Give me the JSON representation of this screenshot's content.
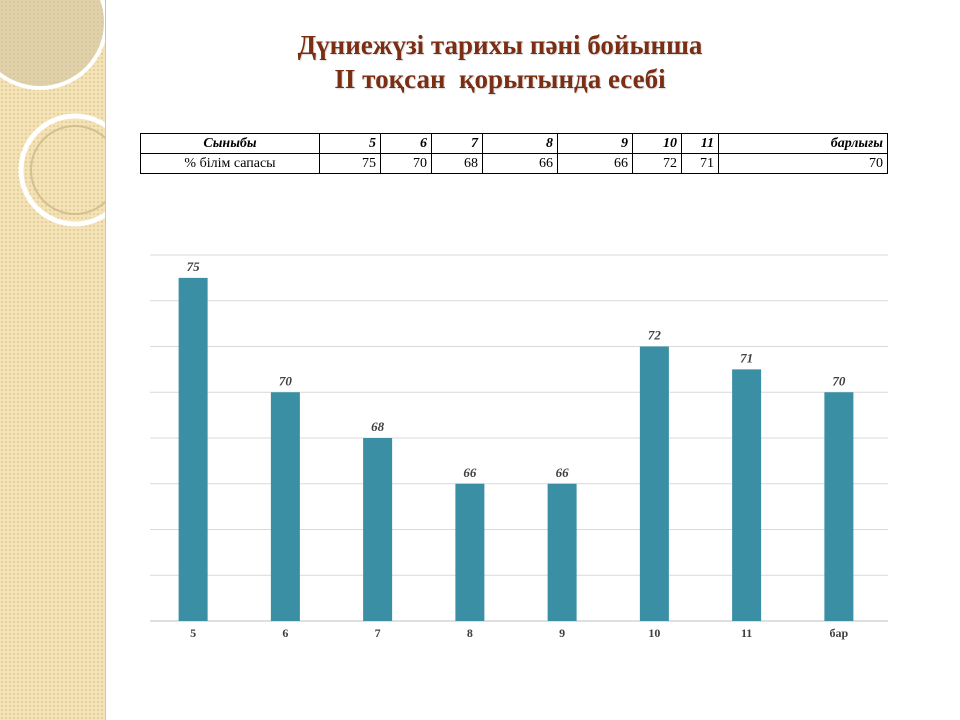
{
  "title": {
    "line1": "Дүниежүзі тарихы пәні бойынша",
    "line2": "ІІ тоқсан  қорытында есебі"
  },
  "table": {
    "header": [
      "Сыныбы",
      "5",
      "6",
      "7",
      "8",
      "9",
      "10",
      "11",
      "барлығы"
    ],
    "row": [
      "% білім сапасы",
      "75",
      "70",
      "68",
      "66",
      "66",
      "72",
      "71",
      "70"
    ]
  },
  "colors": {
    "bar": "#3a8fa5",
    "title": "#7a2e14",
    "side_panel": "#f4e3b7"
  },
  "chart_data": {
    "type": "bar",
    "categories": [
      "5",
      "6",
      "7",
      "8",
      "9",
      "10",
      "11",
      "бар"
    ],
    "values": [
      75,
      70,
      68,
      66,
      66,
      72,
      71,
      70
    ],
    "data_labels": [
      "75",
      "70",
      "68",
      "66",
      "66",
      "72",
      "71",
      "70"
    ],
    "title": "",
    "xlabel": "",
    "ylabel": "",
    "ylim": [
      60,
      76
    ],
    "grid": true
  }
}
